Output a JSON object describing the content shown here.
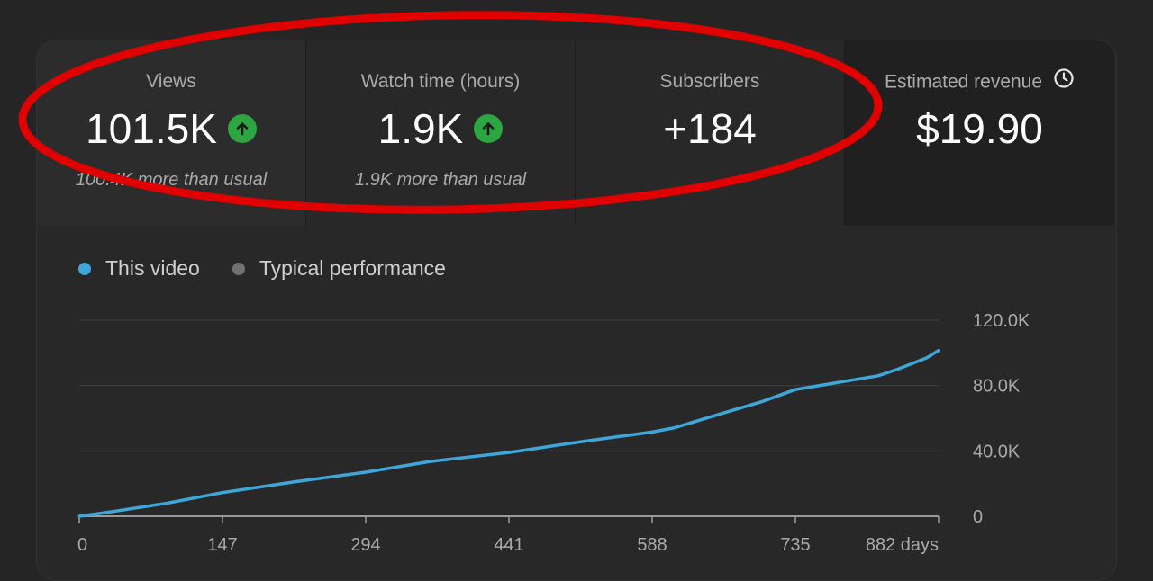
{
  "metrics": [
    {
      "label": "Views",
      "value": "101.5K",
      "trend": "up",
      "sub": "100.4K more than usual"
    },
    {
      "label": "Watch time (hours)",
      "value": "1.9K",
      "trend": "up",
      "sub": "1.9K more than usual"
    },
    {
      "label": "Subscribers",
      "value": "+184",
      "trend": "",
      "sub": ""
    },
    {
      "label": "Estimated revenue",
      "value": "$19.90",
      "trend": "",
      "sub": "",
      "icon": "clock-icon"
    }
  ],
  "legend": [
    {
      "label": "This video",
      "color": "#3ea6d8"
    },
    {
      "label": "Typical performance",
      "color": "#717171"
    }
  ],
  "colors": {
    "accent": "#3ea6d8",
    "trend_up": "#2ba640",
    "annotation": "#e00000"
  },
  "chart_data": {
    "type": "line",
    "xlabel": "",
    "ylabel": "",
    "x_ticks": [
      "0",
      "147",
      "294",
      "441",
      "588",
      "735",
      "882 days"
    ],
    "x_tick_values": [
      0,
      147,
      294,
      441,
      588,
      735,
      882
    ],
    "y_ticks": [
      "0",
      "40.0K",
      "80.0K",
      "120.0K"
    ],
    "y_tick_values": [
      0,
      40000,
      80000,
      120000
    ],
    "xlim": [
      0,
      882
    ],
    "ylim": [
      0,
      120000
    ],
    "grid": true,
    "series": [
      {
        "name": "This video",
        "x": [
          0,
          30,
          90,
          147,
          220,
          294,
          360,
          441,
          520,
          588,
          610,
          660,
          700,
          735,
          780,
          820,
          840,
          870,
          882
        ],
        "y": [
          0,
          2500,
          8000,
          14500,
          21000,
          27000,
          33500,
          39000,
          46000,
          51500,
          54000,
          63000,
          70000,
          77500,
          82000,
          86000,
          90000,
          97000,
          101500
        ]
      }
    ]
  }
}
